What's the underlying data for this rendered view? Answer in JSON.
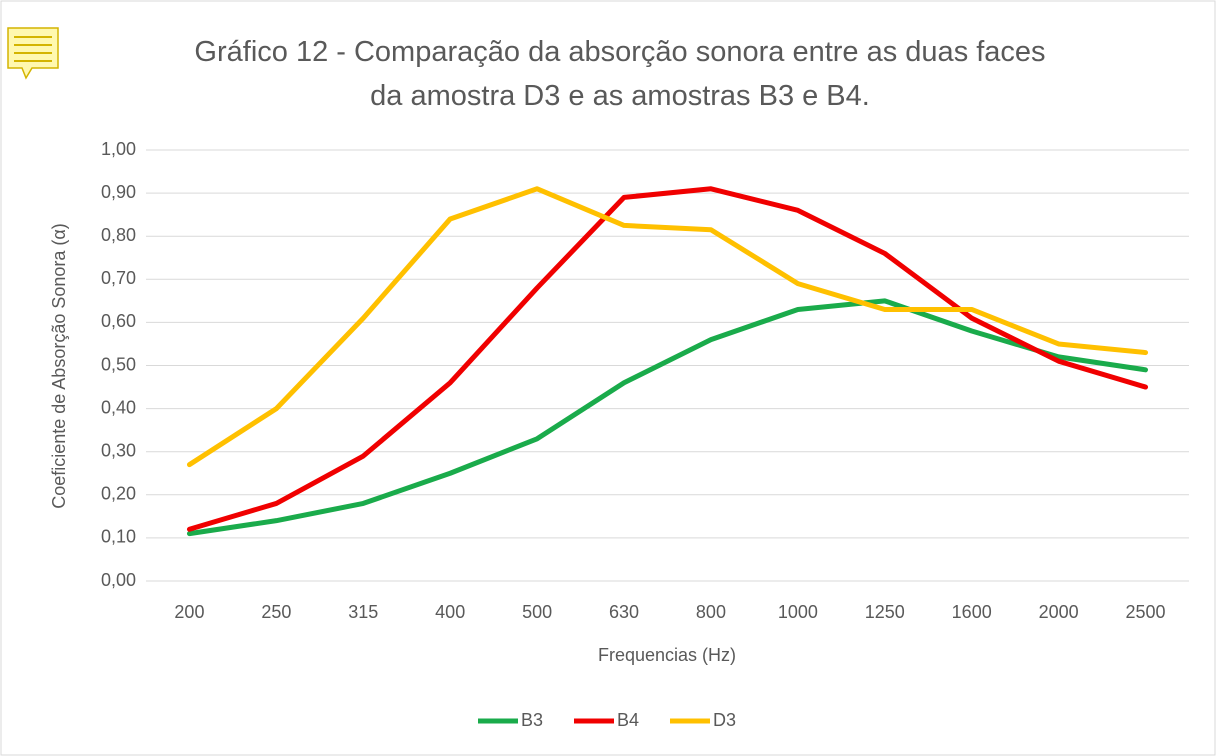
{
  "chart_data": {
    "type": "line",
    "title": "Gráfico 12 - Comparação da absorção sonora entre as duas faces da amostra D3 e as amostras B3 e B4.",
    "x_label": "Frequencias (Hz)",
    "y_label": "Coeficiente de Absorção Sonora (α)",
    "categories": [
      "200",
      "250",
      "315",
      "400",
      "500",
      "630",
      "800",
      "1000",
      "1250",
      "1600",
      "2000",
      "2500"
    ],
    "series": [
      {
        "name": "B3",
        "color": "#1aab4b",
        "values": [
          0.11,
          0.14,
          0.18,
          0.25,
          0.33,
          0.46,
          0.56,
          0.63,
          0.65,
          0.58,
          0.52,
          0.49
        ]
      },
      {
        "name": "B4",
        "color": "#f00000",
        "values": [
          0.12,
          0.18,
          0.29,
          0.46,
          0.68,
          0.89,
          0.91,
          0.86,
          0.76,
          0.61,
          0.51,
          0.45
        ]
      },
      {
        "name": "D3",
        "color": "#ffc000",
        "values": [
          0.27,
          0.4,
          0.61,
          0.84,
          0.91,
          0.825,
          0.815,
          0.69,
          0.63,
          0.63,
          0.55,
          0.53
        ]
      }
    ],
    "ylim": [
      0,
      1
    ],
    "yticks": [
      {
        "value": 0,
        "label": "0,00"
      },
      {
        "value": 0.1,
        "label": "0,10"
      },
      {
        "value": 0.2,
        "label": "0,20"
      },
      {
        "value": 0.3,
        "label": "0,30"
      },
      {
        "value": 0.4,
        "label": "0,40"
      },
      {
        "value": 0.5,
        "label": "0,50"
      },
      {
        "value": 0.6,
        "label": "0,60"
      },
      {
        "value": 0.7,
        "label": "0,70"
      },
      {
        "value": 0.8,
        "label": "0,80"
      },
      {
        "value": 0.9,
        "label": "0,90"
      },
      {
        "value": 1,
        "label": "1,00"
      }
    ],
    "grid": true,
    "legend": "bottom"
  }
}
